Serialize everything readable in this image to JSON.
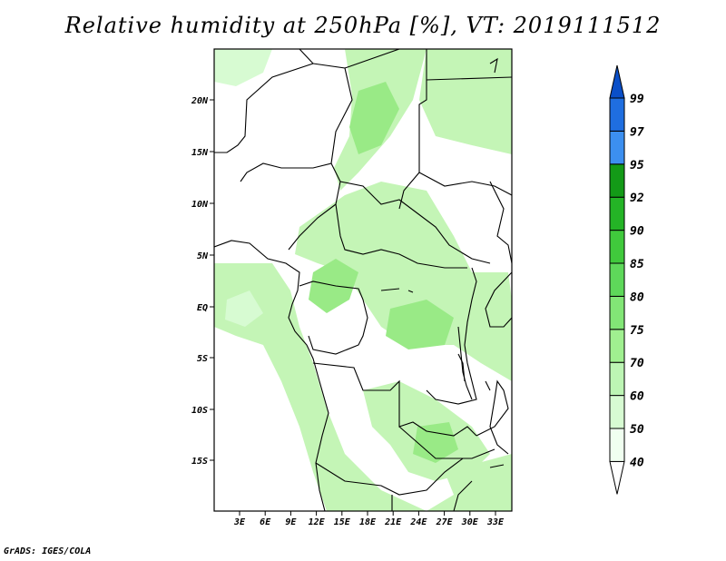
{
  "title": "Relative humidity at 250hPa [%], VT: 2019111512",
  "credit": "GrADS: IGES/COLA",
  "map": {
    "lon_ticks": [
      "3E",
      "6E",
      "9E",
      "12E",
      "15E",
      "18E",
      "21E",
      "24E",
      "27E",
      "30E",
      "33E"
    ],
    "lat_ticks": [
      "20N",
      "15N",
      "10N",
      "5N",
      "EQ",
      "5S",
      "10S",
      "15S"
    ],
    "extent": {
      "lon": [
        0,
        35
      ],
      "lat": [
        -20,
        25
      ]
    }
  },
  "colorbar": {
    "labels": [
      "40",
      "50",
      "60",
      "70",
      "75",
      "80",
      "85",
      "90",
      "92",
      "95",
      "97",
      "99"
    ],
    "colors": [
      "#f0fff0",
      "#d7fbd2",
      "#bdf5b4",
      "#a0f090",
      "#82e676",
      "#5ed85a",
      "#40c93c",
      "#24b426",
      "#139a17",
      "#3c8ff0",
      "#1f6ee0",
      "#0a4fc8"
    ]
  },
  "colors": {
    "humid_light": "#c4f5b6",
    "humid_mid": "#99ea86",
    "humid_dark": "#72dc62",
    "coast": "#000000"
  }
}
